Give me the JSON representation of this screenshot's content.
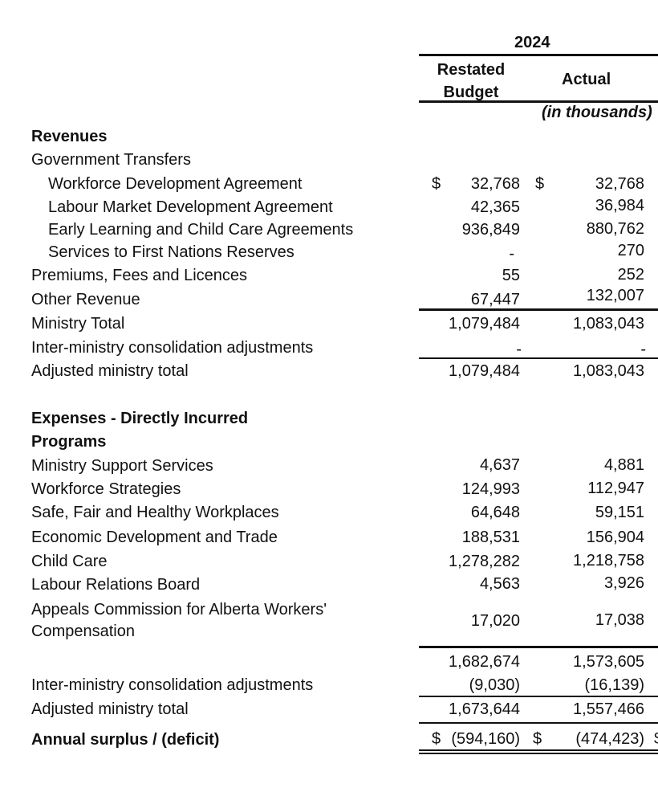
{
  "header": {
    "year": "2024",
    "col_budget": [
      "Restated",
      "Budget"
    ],
    "col_actual": "Actual",
    "units": "(in thousands)"
  },
  "revenues": {
    "heading": "Revenues",
    "gov_transfers": "Government Transfers",
    "rows": [
      {
        "label": "Workforce Development Agreement",
        "budget": "32,768",
        "actual": "32,768"
      },
      {
        "label": "Labour Market Development Agreement",
        "budget": "42,365",
        "actual": "36,984"
      },
      {
        "label": "Early Learning and Child Care Agreements",
        "budget": "936,849",
        "actual": "880,762"
      },
      {
        "label": "Services to First Nations Reserves",
        "budget": "-",
        "actual": "270"
      },
      {
        "label": "Premiums, Fees and Licences",
        "budget": "55",
        "actual": "252"
      },
      {
        "label": "Other Revenue",
        "budget": "67,447",
        "actual": "132,007"
      },
      {
        "label": "Ministry Total",
        "budget": "1,079,484",
        "actual": "1,083,043"
      },
      {
        "label": "Inter-ministry consolidation adjustments",
        "budget": "-",
        "actual": "-"
      },
      {
        "label": "Adjusted ministry total",
        "budget": "1,079,484",
        "actual": "1,083,043"
      }
    ]
  },
  "expenses": {
    "heading": "Expenses - Directly Incurred",
    "programs": "Programs",
    "rows": [
      {
        "label": "Ministry Support Services",
        "budget": "4,637",
        "actual": "4,881"
      },
      {
        "label": "Workforce Strategies",
        "budget": "124,993",
        "actual": "112,947"
      },
      {
        "label": "Safe, Fair and Healthy Workplaces",
        "budget": "64,648",
        "actual": "59,151"
      },
      {
        "label": "Economic Development and Trade",
        "budget": "188,531",
        "actual": "156,904"
      },
      {
        "label": "Child Care",
        "budget": "1,278,282",
        "actual": "1,218,758"
      },
      {
        "label": "Labour Relations Board",
        "budget": "4,563",
        "actual": "3,926"
      },
      {
        "label_1": "Appeals Commission for Alberta Workers'",
        "label_2": "Compensation",
        "budget": "17,020",
        "actual": "17,038"
      }
    ],
    "subtotal": {
      "budget": "1,682,674",
      "actual": "1,573,605"
    },
    "inter": {
      "label": "Inter-ministry consolidation adjustments",
      "budget": "(9,030)",
      "actual": "(16,139)"
    },
    "adjusted": {
      "label": "Adjusted ministry total",
      "budget": "1,673,644",
      "actual": "1,557,466"
    }
  },
  "surplus": {
    "label": "Annual surplus / (deficit)",
    "budget": "(594,160)",
    "actual": "(474,423)"
  },
  "currency": "$"
}
